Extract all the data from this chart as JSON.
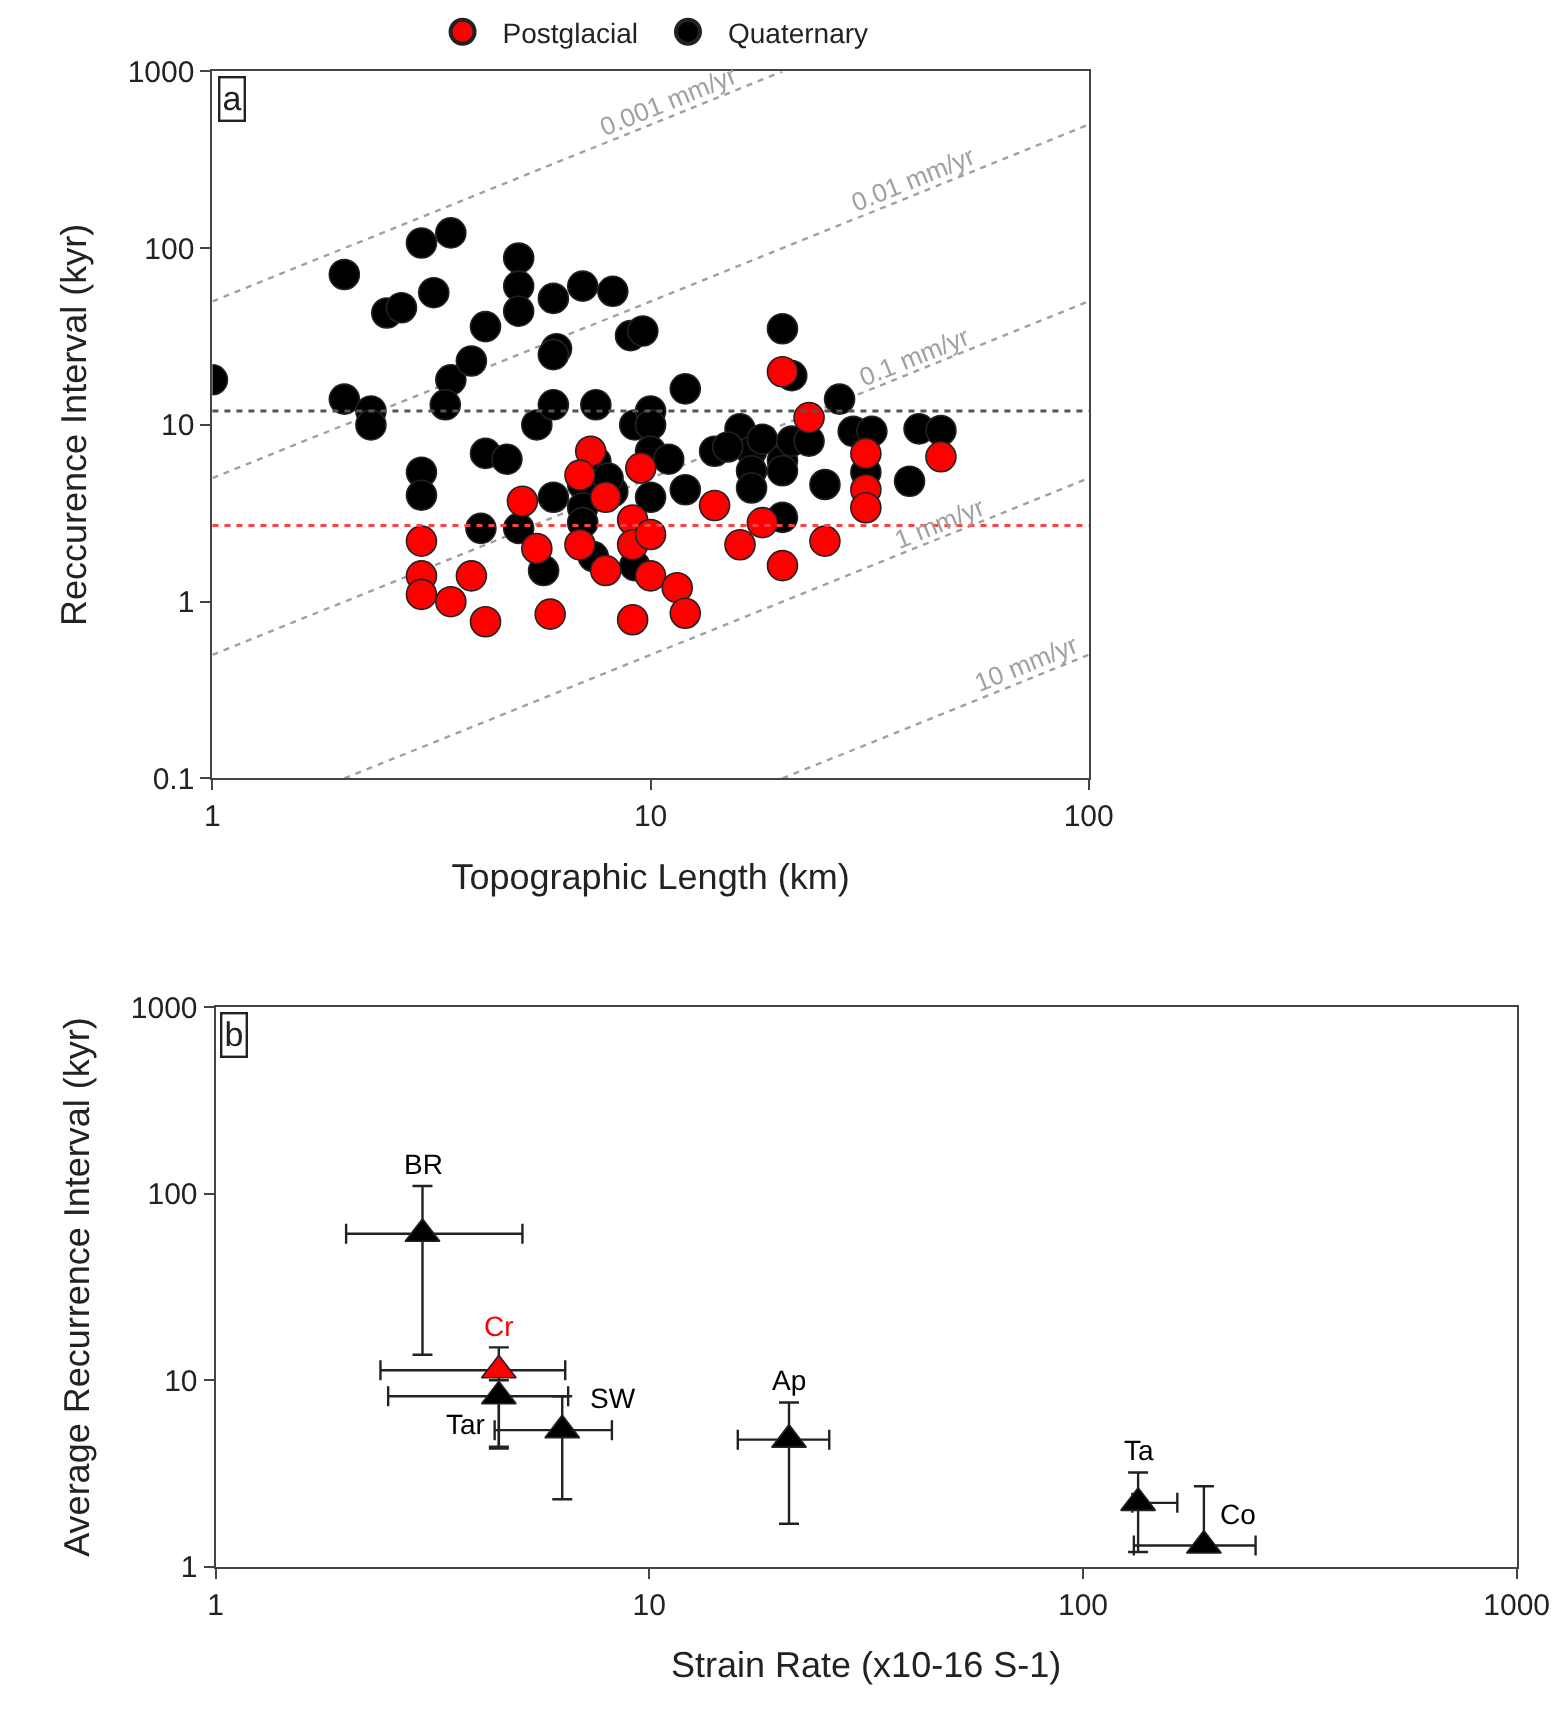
{
  "chart_data": [
    {
      "type": "scatter",
      "xlabel": "Topographic Length (km)",
      "ylabel": "Reccurence Interval (kyr)",
      "annotations": [
        "a"
      ],
      "xlim": [
        1,
        100
      ],
      "ylim": [
        0.1,
        1000
      ],
      "xticks": [
        1,
        10,
        100
      ],
      "yticks": [
        0.1,
        1,
        10,
        100,
        1000
      ],
      "log": "xy",
      "legend": "top",
      "marker": "circle",
      "ref_lines": [
        {
          "axis": "y",
          "value": 12,
          "color": "#555555",
          "line_style": "dotted"
        },
        {
          "axis": "y",
          "value": 2.7,
          "color": "#ff4040",
          "line_style": "dotted"
        }
      ],
      "series": [
        {
          "type": "line",
          "name": "0.001 mm/yr",
          "color": "#a0a0a0",
          "line_style": "dotted",
          "marker": "none",
          "x": [
            1,
            20
          ],
          "values": [
            50,
            1000
          ]
        },
        {
          "type": "line",
          "name": "0.01 mm/yr",
          "color": "#a0a0a0",
          "line_style": "dotted",
          "marker": "none",
          "x": [
            1,
            100
          ],
          "values": [
            5,
            500
          ]
        },
        {
          "type": "line",
          "name": "0.1 mm/yr",
          "color": "#a0a0a0",
          "line_style": "dotted",
          "marker": "none",
          "x": [
            1,
            100
          ],
          "values": [
            0.5,
            50
          ]
        },
        {
          "type": "line",
          "name": "1 mm/yr",
          "color": "#a0a0a0",
          "line_style": "dotted",
          "marker": "none",
          "x": [
            2,
            100
          ],
          "values": [
            0.1,
            5
          ]
        },
        {
          "type": "line",
          "name": "10 mm/yr",
          "color": "#a0a0a0",
          "line_style": "dotted",
          "marker": "none",
          "x": [
            20,
            100
          ],
          "values": [
            0.1,
            0.5
          ]
        },
        {
          "name": "Quaternary",
          "color": "#000000",
          "x": [
            1.0,
            2.0,
            2.0,
            2.3,
            2.3,
            2.5,
            2.7,
            3.0,
            3.5,
            3.2,
            3.0,
            3.0,
            3.5,
            3.4,
            3.9,
            4.2,
            4.1,
            4.2,
            4.7,
            5.0,
            5.0,
            5.0,
            5.0,
            5.5,
            6.0,
            6.1,
            6.0,
            6.0,
            6.0,
            5.7,
            7.0,
            8.2,
            7.5,
            7.0,
            7.0,
            7.0,
            7.5,
            8.2,
            7.4,
            8.1,
            9.2,
            9.2,
            10,
            10,
            10,
            10,
            9.0,
            9.6,
            12,
            20,
            21,
            27,
            11,
            12,
            14,
            16,
            17,
            18,
            17,
            17,
            20,
            20,
            21,
            23,
            20,
            25,
            29,
            32,
            31,
            39,
            41,
            46,
            8.0,
            15
          ],
          "values": [
            18,
            71,
            14,
            12,
            10,
            43,
            46,
            107,
            122,
            56,
            5.4,
            4.0,
            18,
            13,
            23,
            36,
            2.6,
            6.9,
            6.4,
            88,
            61,
            44,
            2.6,
            10,
            52,
            27,
            25,
            13,
            3.9,
            1.5,
            61,
            57,
            13,
            4.6,
            3.4,
            2.8,
            6.2,
            4.2,
            1.8,
            null,
            1.6,
            10,
            12,
            10,
            7.1,
            3.9,
            32,
            34,
            16,
            35,
            19,
            14,
            6.4,
            4.3,
            7.1,
            9.5,
            7.1,
            8.3,
            5.5,
            4.4,
            6.3,
            5.5,
            8.1,
            8.1,
            3.0,
            4.6,
            9.2,
            9.2,
            5.4,
            4.8,
            9.5,
            9.3,
            5.0,
            7.5
          ]
        },
        {
          "name": "Postglacial",
          "color": "#ff0000",
          "x": [
            3.0,
            3.0,
            3.0,
            3.5,
            3.9,
            4.2,
            5.1,
            5.5,
            5.7,
            5.9,
            6.9,
            7.3,
            6.9,
            7.9,
            7.9,
            9.1,
            9.1,
            9.1,
            9.5,
            10,
            10,
            11,
            11.5,
            12,
            14,
            16,
            17,
            18,
            20,
            25,
            20,
            23,
            31,
            31,
            31,
            46
          ],
          "values": [
            2.2,
            1.4,
            1.1,
            1.0,
            1.4,
            0.77,
            3.7,
            2.0,
            null,
            0.85,
            2.1,
            7.1,
            5.2,
            1.5,
            3.9,
            2.9,
            2.1,
            0.79,
            5.7,
            2.4,
            1.4,
            null,
            1.2,
            0.86,
            3.5,
            2.1,
            null,
            2.8,
            1.6,
            2.2,
            20,
            11,
            6.9,
            4.3,
            3.4,
            6.6
          ]
        }
      ]
    },
    {
      "type": "scatter",
      "xlabel": "Strain Rate (x10-16 S-1)",
      "ylabel": "Average Recurrence Interval (kyr)",
      "annotations": [
        "b"
      ],
      "xlim": [
        1,
        1000
      ],
      "ylim": [
        1,
        1000
      ],
      "xticks": [
        1,
        10,
        100,
        1000
      ],
      "yticks": [
        1,
        10,
        100,
        1000
      ],
      "log": "xy",
      "marker": "triangle",
      "series": [
        {
          "name": "BR",
          "color": "#000000",
          "x": [
            3.0
          ],
          "values": [
            61
          ],
          "errors": [
            [
              13.7,
              110
            ]
          ],
          "xerrors": [
            [
              2.0,
              5.1
            ]
          ]
        },
        {
          "name": "Cr",
          "color": "#ff0000",
          "x": [
            4.5
          ],
          "values": [
            11.3
          ],
          "errors": [
            [
              4.4,
              15
            ]
          ],
          "xerrors": [
            [
              2.4,
              6.4
            ]
          ]
        },
        {
          "name": "Tar",
          "color": "#000000",
          "x": [
            4.5
          ],
          "values": [
            8.2
          ],
          "errors": [
            [
              4.3,
              10
            ]
          ],
          "xerrors": [
            [
              2.5,
              6.5
            ]
          ]
        },
        {
          "name": "SW",
          "color": "#000000",
          "x": [
            6.3
          ],
          "values": [
            5.4
          ],
          "errors": [
            [
              2.3,
              8.2
            ]
          ],
          "xerrors": [
            [
              4.4,
              8.2
            ]
          ]
        },
        {
          "name": "Ap",
          "color": "#000000",
          "x": [
            21
          ],
          "values": [
            4.8
          ],
          "errors": [
            [
              1.7,
              7.6
            ]
          ],
          "xerrors": [
            [
              16,
              26
            ]
          ]
        },
        {
          "name": "Ta",
          "color": "#000000",
          "x": [
            134
          ],
          "values": [
            2.2
          ],
          "errors": [
            [
              1.2,
              3.2
            ]
          ],
          "xerrors": [
            [
              130,
              165
            ]
          ]
        },
        {
          "name": "Co",
          "color": "#000000",
          "x": [
            190
          ],
          "values": [
            1.3
          ],
          "errors": [
            [
              1.3,
              2.7
            ]
          ],
          "xerrors": [
            [
              131,
              250
            ]
          ]
        }
      ]
    }
  ]
}
